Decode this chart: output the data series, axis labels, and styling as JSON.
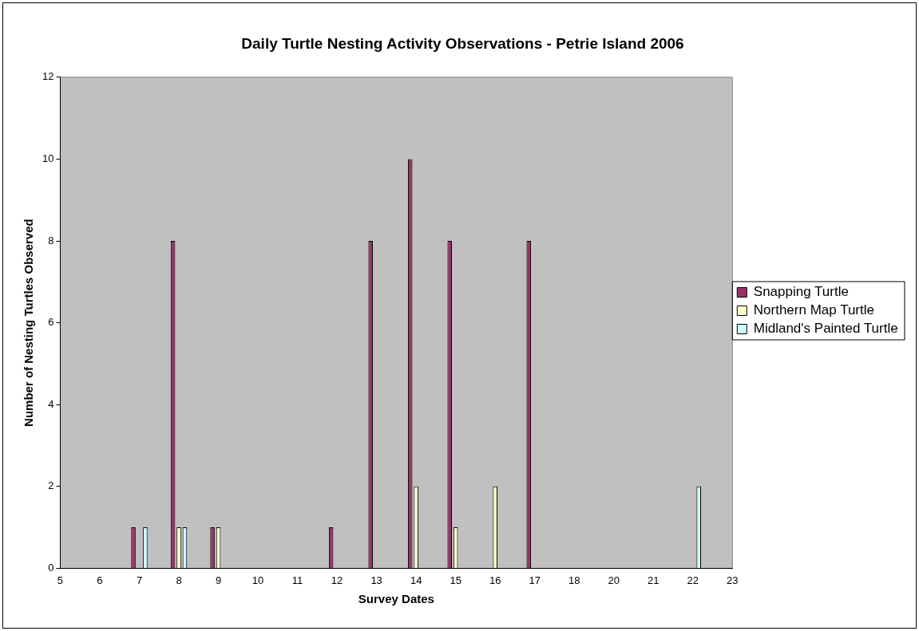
{
  "chart_data": {
    "type": "bar",
    "title": "Daily Turtle Nesting Activity Observations - Petrie Island 2006",
    "xlabel": "Survey Dates",
    "ylabel": "Number of Nesting Turtles Observed",
    "categories": [
      "5",
      "6",
      "7",
      "8",
      "9",
      "10",
      "11",
      "12",
      "13",
      "14",
      "15",
      "16",
      "17",
      "18",
      "20",
      "21",
      "22",
      "23"
    ],
    "series": [
      {
        "name": "Snapping Turtle",
        "color": "#993366",
        "values": [
          null,
          null,
          1,
          8,
          1,
          null,
          null,
          1,
          8,
          10,
          8,
          null,
          8,
          null,
          null,
          null,
          null,
          null
        ]
      },
      {
        "name": "Northern Map Turtle",
        "color": "#ffffcc",
        "values": [
          null,
          null,
          null,
          1,
          1,
          null,
          null,
          null,
          null,
          2,
          1,
          2,
          null,
          null,
          null,
          null,
          null,
          null
        ]
      },
      {
        "name": "Midland's Painted Turtle",
        "color": "#ccffff",
        "values": [
          null,
          null,
          1,
          1,
          null,
          null,
          null,
          null,
          null,
          null,
          null,
          null,
          null,
          null,
          null,
          null,
          2,
          null
        ]
      }
    ],
    "ylim": [
      0,
      12
    ],
    "yticks": [
      0,
      2,
      4,
      6,
      8,
      10,
      12
    ],
    "grid": false,
    "legend": "right"
  }
}
